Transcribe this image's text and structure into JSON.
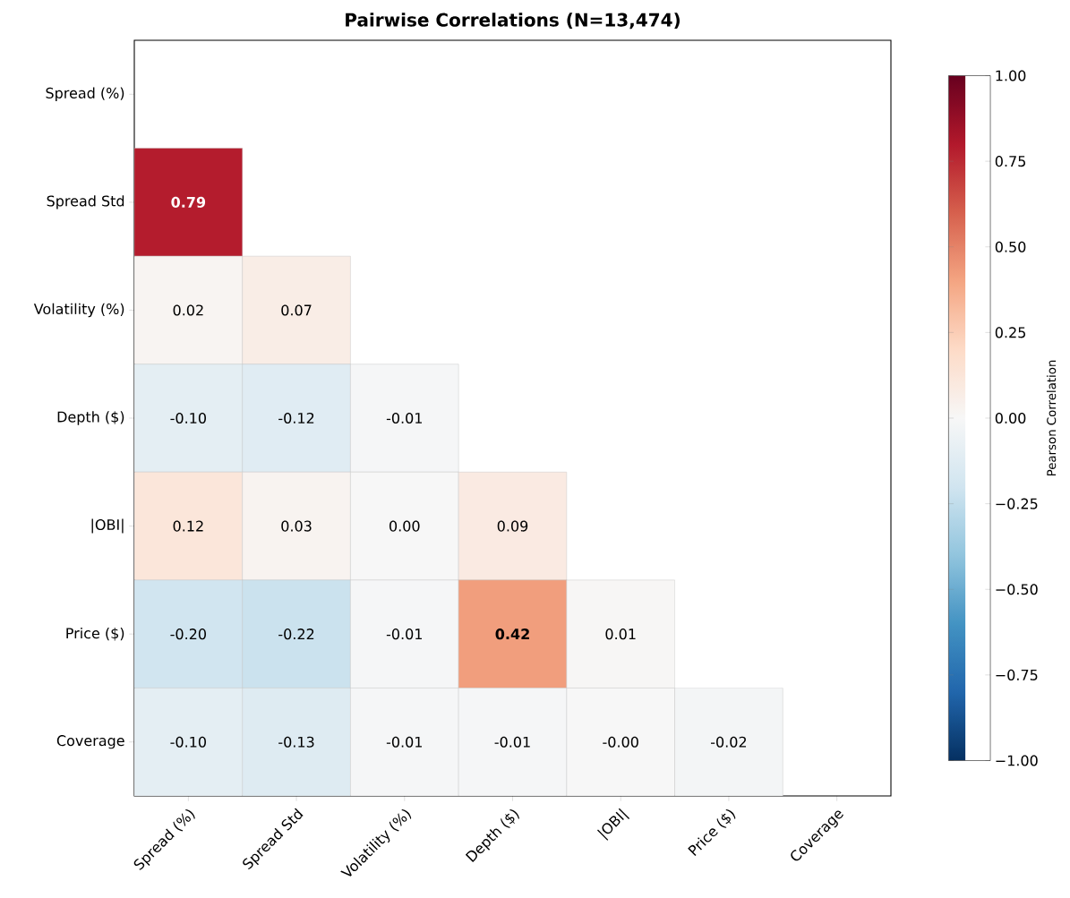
{
  "chart_data": {
    "type": "heatmap",
    "title": "Pairwise Correlations (N=13,474)",
    "categories": [
      "Spread (%)",
      "Spread Std",
      "Volatility (%)",
      "Depth ($)",
      "|OBI|",
      "Price ($)",
      "Coverage"
    ],
    "y_categories": [
      "Spread (%)",
      "Spread Std",
      "Volatility (%)",
      "Depth ($)",
      "|OBI|",
      "Price ($)",
      "Coverage"
    ],
    "cells": [
      [
        null,
        null,
        null,
        null,
        null,
        null,
        null
      ],
      [
        0.79,
        null,
        null,
        null,
        null,
        null,
        null
      ],
      [
        0.02,
        0.07,
        null,
        null,
        null,
        null,
        null
      ],
      [
        -0.1,
        -0.12,
        -0.01,
        null,
        null,
        null,
        null
      ],
      [
        0.12,
        0.03,
        0.0,
        0.09,
        null,
        null,
        null
      ],
      [
        -0.2,
        -0.22,
        -0.01,
        0.42,
        0.01,
        null,
        null
      ],
      [
        -0.1,
        -0.13,
        -0.01,
        -0.01,
        -0.0,
        -0.02,
        null
      ]
    ],
    "cell_labels": [
      [
        null,
        null,
        null,
        null,
        null,
        null,
        null
      ],
      [
        "**0.79**",
        null,
        null,
        null,
        null,
        null,
        null
      ],
      [
        "0.02",
        "0.07",
        null,
        null,
        null,
        null,
        null
      ],
      [
        "-0.10",
        "-0.12",
        "-0.01",
        null,
        null,
        null,
        null
      ],
      [
        "0.12",
        "0.03",
        "0.00",
        "0.09",
        null,
        null,
        null
      ],
      [
        "-0.20",
        "-0.22",
        "-0.01",
        "**0.42**",
        "0.01",
        null,
        null
      ],
      [
        "-0.10",
        "-0.13",
        "-0.01",
        "-0.01",
        "-0.00",
        "-0.02",
        null
      ]
    ],
    "clabel": "Pearson Correlation",
    "clim": [
      -1,
      1
    ],
    "cticks": [
      {
        "value": -1,
        "label": "−1.00"
      },
      {
        "value": -0.75,
        "label": "−0.75"
      },
      {
        "value": -0.5,
        "label": "−0.50"
      },
      {
        "value": -0.25,
        "label": "−0.25"
      },
      {
        "value": 0,
        "label": "0.00"
      },
      {
        "value": 0.25,
        "label": "0.25"
      },
      {
        "value": 0.5,
        "label": "0.50"
      },
      {
        "value": 0.75,
        "label": "0.75"
      },
      {
        "value": 1,
        "label": "1.00"
      }
    ]
  }
}
